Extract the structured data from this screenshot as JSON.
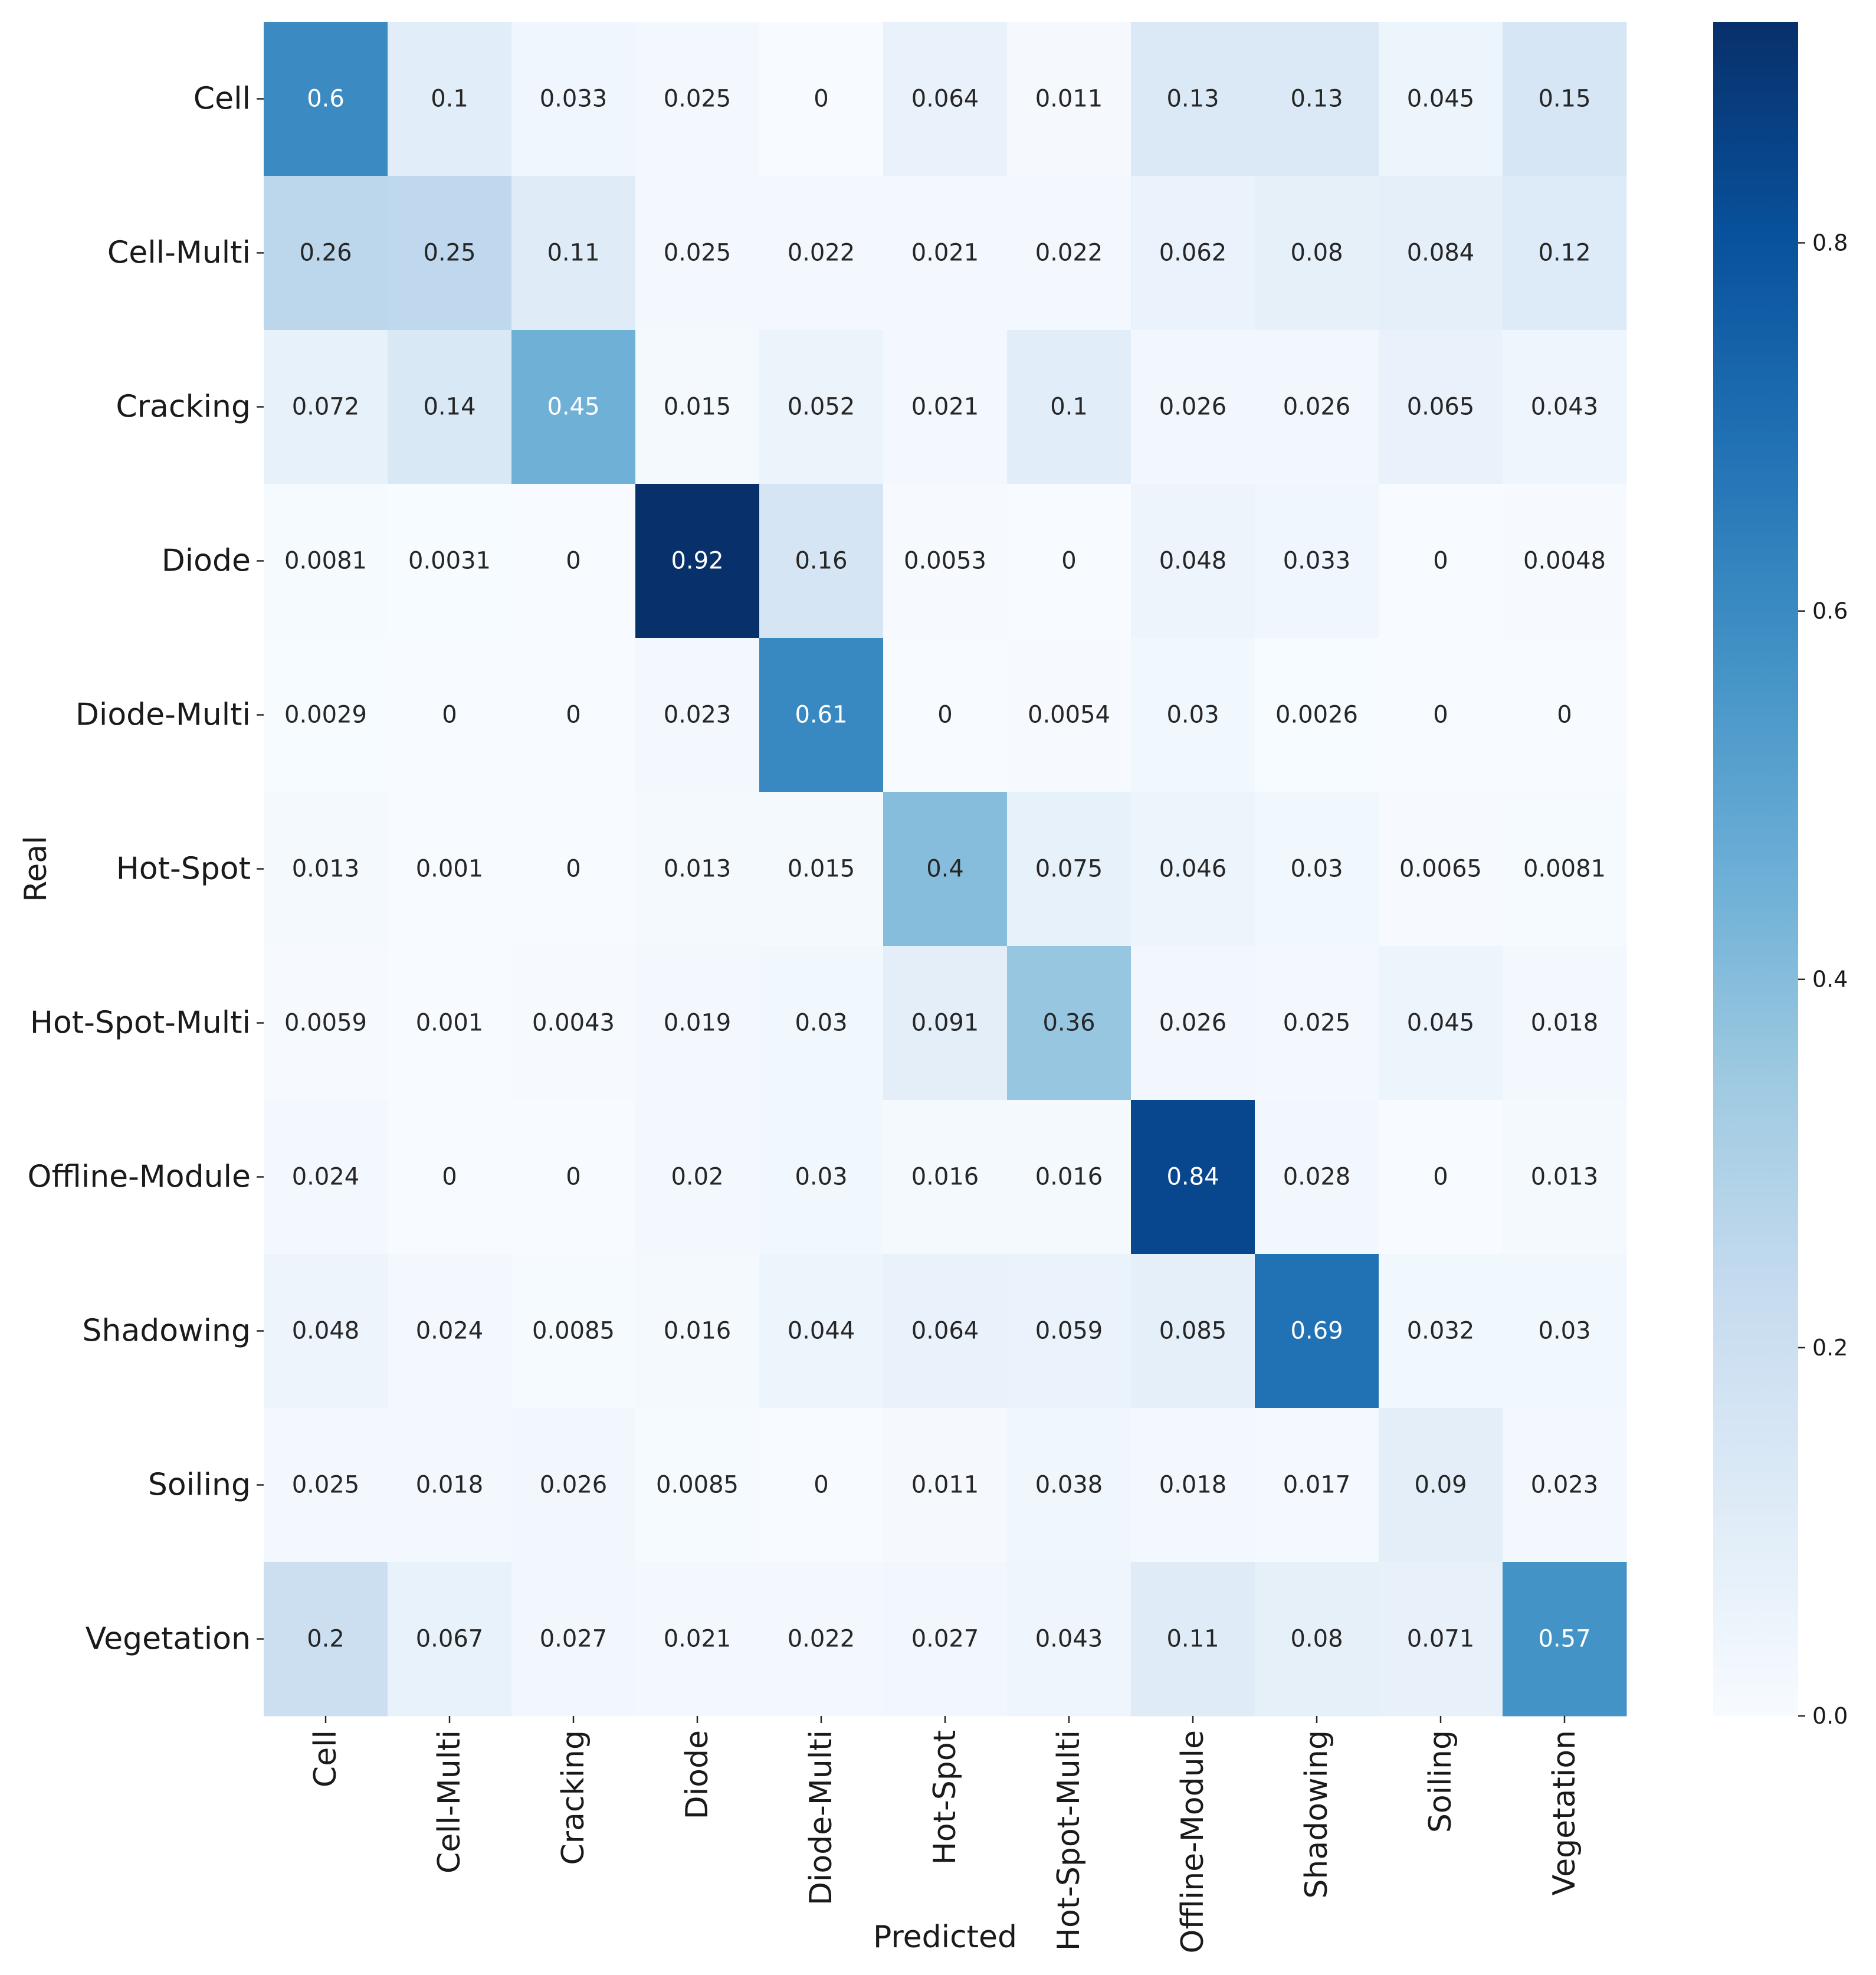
{
  "chart_data": {
    "type": "heatmap",
    "title": "",
    "xlabel": "Predicted",
    "ylabel": "Real",
    "x_categories": [
      "Cell",
      "Cell-Multi",
      "Cracking",
      "Diode",
      "Diode-Multi",
      "Hot-Spot",
      "Hot-Spot-Multi",
      "Offline-Module",
      "Shadowing",
      "Soiling",
      "Vegetation"
    ],
    "y_categories": [
      "Cell",
      "Cell-Multi",
      "Cracking",
      "Diode",
      "Diode-Multi",
      "Hot-Spot",
      "Hot-Spot-Multi",
      "Offline-Module",
      "Shadowing",
      "Soiling",
      "Vegetation"
    ],
    "values": [
      [
        0.6,
        0.1,
        0.033,
        0.025,
        0,
        0.064,
        0.011,
        0.13,
        0.13,
        0.045,
        0.15
      ],
      [
        0.26,
        0.25,
        0.11,
        0.025,
        0.022,
        0.021,
        0.022,
        0.062,
        0.08,
        0.084,
        0.12
      ],
      [
        0.072,
        0.14,
        0.45,
        0.015,
        0.052,
        0.021,
        0.1,
        0.026,
        0.026,
        0.065,
        0.043
      ],
      [
        0.0081,
        0.0031,
        0,
        0.92,
        0.16,
        0.0053,
        0,
        0.048,
        0.033,
        0,
        0.0048
      ],
      [
        0.0029,
        0,
        0,
        0.023,
        0.61,
        0,
        0.0054,
        0.03,
        0.0026,
        0,
        0
      ],
      [
        0.013,
        0.001,
        0,
        0.013,
        0.015,
        0.4,
        0.075,
        0.046,
        0.03,
        0.0065,
        0.0081
      ],
      [
        0.0059,
        0.001,
        0.0043,
        0.019,
        0.03,
        0.091,
        0.36,
        0.026,
        0.025,
        0.045,
        0.018
      ],
      [
        0.024,
        0,
        0,
        0.02,
        0.03,
        0.016,
        0.016,
        0.84,
        0.028,
        0,
        0.013
      ],
      [
        0.048,
        0.024,
        0.0085,
        0.016,
        0.044,
        0.064,
        0.059,
        0.085,
        0.69,
        0.032,
        0.03
      ],
      [
        0.025,
        0.018,
        0.026,
        0.0085,
        0,
        0.011,
        0.038,
        0.018,
        0.017,
        0.09,
        0.023
      ],
      [
        0.2,
        0.067,
        0.027,
        0.021,
        0.022,
        0.027,
        0.043,
        0.11,
        0.08,
        0.071,
        0.57
      ]
    ],
    "cell_labels": [
      [
        "0.6",
        "0.1",
        "0.033",
        "0.025",
        "0",
        "0.064",
        "0.011",
        "0.13",
        "0.13",
        "0.045",
        "0.15"
      ],
      [
        "0.26",
        "0.25",
        "0.11",
        "0.025",
        "0.022",
        "0.021",
        "0.022",
        "0.062",
        "0.08",
        "0.084",
        "0.12"
      ],
      [
        "0.072",
        "0.14",
        "0.45",
        "0.015",
        "0.052",
        "0.021",
        "0.1",
        "0.026",
        "0.026",
        "0.065",
        "0.043"
      ],
      [
        "0.0081",
        "0.0031",
        "0",
        "0.92",
        "0.16",
        "0.0053",
        "0",
        "0.048",
        "0.033",
        "0",
        "0.0048"
      ],
      [
        "0.0029",
        "0",
        "0",
        "0.023",
        "0.61",
        "0",
        "0.0054",
        "0.03",
        "0.0026",
        "0",
        "0"
      ],
      [
        "0.013",
        "0.001",
        "0",
        "0.013",
        "0.015",
        "0.4",
        "0.075",
        "0.046",
        "0.03",
        "0.0065",
        "0.0081"
      ],
      [
        "0.0059",
        "0.001",
        "0.0043",
        "0.019",
        "0.03",
        "0.091",
        "0.36",
        "0.026",
        "0.025",
        "0.045",
        "0.018"
      ],
      [
        "0.024",
        "0",
        "0",
        "0.02",
        "0.03",
        "0.016",
        "0.016",
        "0.84",
        "0.028",
        "0",
        "0.013"
      ],
      [
        "0.048",
        "0.024",
        "0.0085",
        "0.016",
        "0.044",
        "0.064",
        "0.059",
        "0.085",
        "0.69",
        "0.032",
        "0.03"
      ],
      [
        "0.025",
        "0.018",
        "0.026",
        "0.0085",
        "0",
        "0.011",
        "0.038",
        "0.018",
        "0.017",
        "0.09",
        "0.023"
      ],
      [
        "0.2",
        "0.067",
        "0.027",
        "0.021",
        "0.022",
        "0.027",
        "0.043",
        "0.11",
        "0.08",
        "0.071",
        "0.57"
      ]
    ],
    "colormap": "Blues",
    "colormap_stops": [
      "#f7fbff",
      "#deebf7",
      "#c6dbef",
      "#9ecae1",
      "#6baed6",
      "#4292c6",
      "#2171b5",
      "#08519c",
      "#08306b"
    ],
    "vmin": 0,
    "vmax": 0.92,
    "colorbar_ticks": [
      0.0,
      0.2,
      0.4,
      0.6,
      0.8
    ],
    "colorbar_tick_labels": [
      "0.0",
      "0.2",
      "0.4",
      "0.6",
      "0.8"
    ],
    "dark_text_color": "#262626",
    "light_text_color": "#ffffff",
    "text_switch_threshold": 0.44
  }
}
